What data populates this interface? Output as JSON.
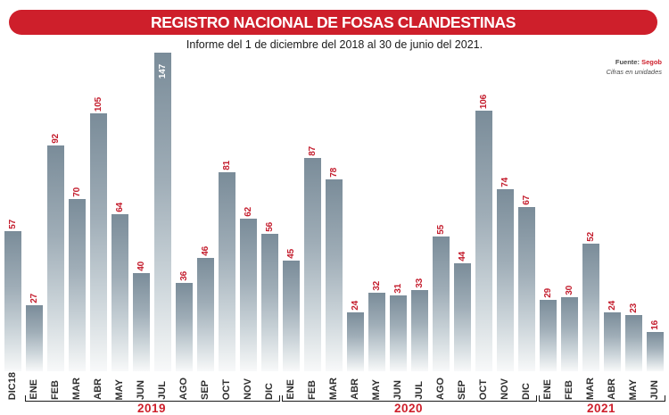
{
  "header": {
    "title": "REGISTRO NACIONAL DE FOSAS CLANDESTINAS",
    "subtitle": "Informe del 1 de diciembre del 2018 al 30 de junio del 2021.",
    "source_label": "Fuente:",
    "source_value": "Segob",
    "units_note": "Cifras en unidades"
  },
  "colors": {
    "accent_red": "#ce1f2b",
    "value_label_red": "#c41e2e",
    "bar_gradient_top": "#7a8c99",
    "bar_gradient_bottom": "#f8f9fa",
    "month_label": "#2f2f2f"
  },
  "chart_data": {
    "type": "bar",
    "title": "REGISTRO NACIONAL DE FOSAS CLANDESTINAS",
    "subtitle": "Informe del 1 de diciembre del 2018 al 30 de junio del 2021.",
    "source": "Fuente: Segob",
    "note": "Cifras en unidades",
    "xlabel": "",
    "ylabel": "",
    "ylim": [
      0,
      147
    ],
    "grid": false,
    "legend": "none",
    "categories": [
      "DIC18",
      "ENE",
      "FEB",
      "MAR",
      "ABR",
      "MAY",
      "JUN",
      "JUL",
      "AGO",
      "SEP",
      "OCT",
      "NOV",
      "DIC",
      "ENE",
      "FEB",
      "MAR",
      "ABR",
      "MAY",
      "JUN",
      "JUL",
      "AGO",
      "SEP",
      "OCT",
      "NOV",
      "DIC",
      "ENE",
      "FEB",
      "MAR",
      "ABR",
      "MAY",
      "JUN"
    ],
    "values": [
      57,
      27,
      92,
      70,
      105,
      64,
      40,
      147,
      36,
      46,
      81,
      62,
      56,
      45,
      87,
      78,
      24,
      32,
      31,
      33,
      55,
      44,
      106,
      74,
      67,
      29,
      30,
      52,
      24,
      23,
      16
    ],
    "value_label_inside_index": 7,
    "truncated_bar_note": "147 bar is clipped to chart top; its value label is white and drawn inside the bar",
    "year_brackets": [
      {
        "label": "2019",
        "from_index": 1,
        "to_index": 12
      },
      {
        "label": "2020",
        "from_index": 13,
        "to_index": 24
      },
      {
        "label": "2021",
        "from_index": 25,
        "to_index": 30
      }
    ]
  }
}
